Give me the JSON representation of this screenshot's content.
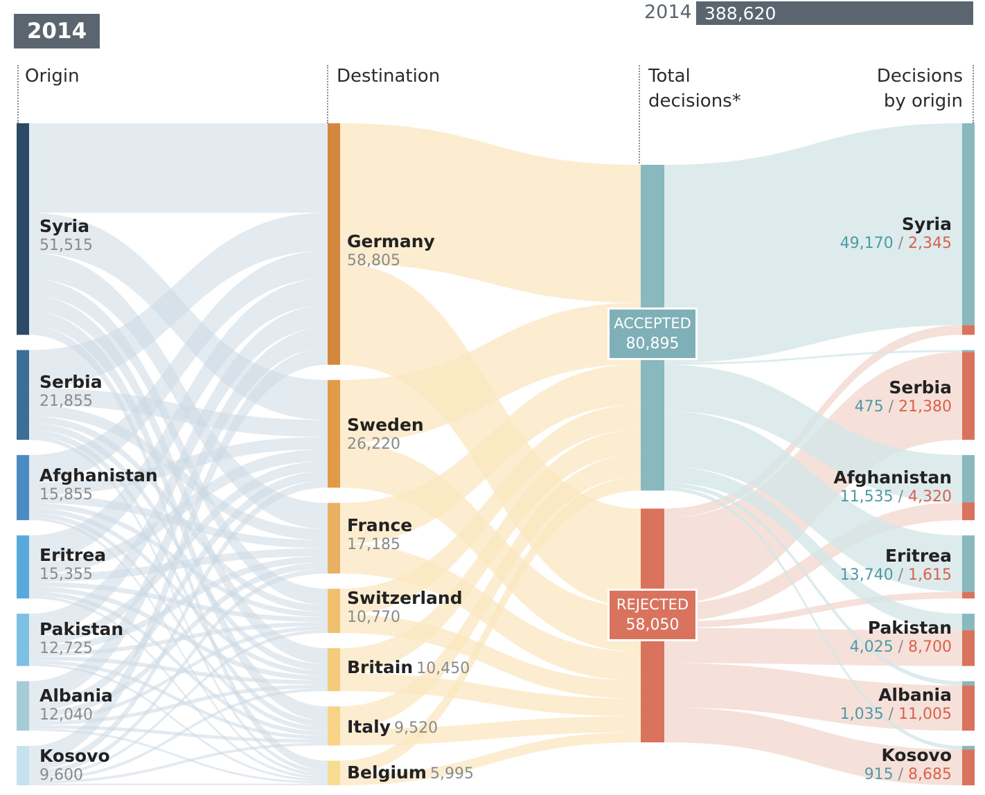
{
  "header": {
    "year": "2014",
    "total_year": "2014",
    "total_value": "388,620"
  },
  "columns": {
    "origin": "Origin",
    "destination": "Destination",
    "total_line1": "Total",
    "total_line2": "decisions*",
    "by_origin_line1": "Decisions",
    "by_origin_line2": "by origin"
  },
  "totals": {
    "accepted_label": "ACCEPTED",
    "accepted_value": "80,895",
    "rejected_label": "REJECTED",
    "rejected_value": "58,050"
  },
  "origins": [
    {
      "name": "Syria",
      "value": "51,515"
    },
    {
      "name": "Serbia",
      "value": "21,855"
    },
    {
      "name": "Afghanistan",
      "value": "15,855"
    },
    {
      "name": "Eritrea",
      "value": "15,355"
    },
    {
      "name": "Pakistan",
      "value": "12,725"
    },
    {
      "name": "Albania",
      "value": "12,040"
    },
    {
      "name": "Kosovo",
      "value": "9,600"
    }
  ],
  "destinations": [
    {
      "name": "Germany",
      "value": "58,805"
    },
    {
      "name": "Sweden",
      "value": "26,220"
    },
    {
      "name": "France",
      "value": "17,185"
    },
    {
      "name": "Switzerland",
      "value": "10,770"
    },
    {
      "name": "Britain",
      "value": "10,450"
    },
    {
      "name": "Italy",
      "value": "9,520"
    },
    {
      "name": "Belgium",
      "value": "5,995"
    }
  ],
  "decisions": [
    {
      "name": "Syria",
      "accepted": "49,170",
      "rejected": "2,345"
    },
    {
      "name": "Serbia",
      "accepted": "475",
      "rejected": "21,380"
    },
    {
      "name": "Afghanistan",
      "accepted": "11,535",
      "rejected": "4,320"
    },
    {
      "name": "Eritrea",
      "accepted": "13,740",
      "rejected": "1,615"
    },
    {
      "name": "Pakistan",
      "accepted": "4,025",
      "rejected": "8,700"
    },
    {
      "name": "Albania",
      "accepted": "1,035",
      "rejected": "11,005"
    },
    {
      "name": "Kosovo",
      "accepted": "915",
      "rejected": "8,685"
    }
  ],
  "colors": {
    "origin_nodes": [
      "#2c4a66",
      "#3d6e97",
      "#4a8cc2",
      "#5aa9dc",
      "#7cc0e3",
      "#a4cbd6",
      "#c5e3ef"
    ],
    "origin_flow": "#ccd8e4",
    "destination_nodes": [
      "#d4873e",
      "#e09a48",
      "#eab062",
      "#f0c06e",
      "#f4cb7c",
      "#f6d386",
      "#f8dc92"
    ],
    "destination_flow": "#fbe7c0",
    "accepted": "#8ab8bf",
    "accepted_flow": "#d5e6e8",
    "rejected": "#d9735e",
    "rejected_flow": "#f5dcd3"
  },
  "chart_data": {
    "type": "sankey",
    "origins": [
      {
        "name": "Syria",
        "total": 51515,
        "accepted": 49170,
        "rejected": 2345
      },
      {
        "name": "Serbia",
        "total": 21855,
        "accepted": 475,
        "rejected": 21380
      },
      {
        "name": "Afghanistan",
        "total": 15855,
        "accepted": 11535,
        "rejected": 4320
      },
      {
        "name": "Eritrea",
        "total": 15355,
        "accepted": 13740,
        "rejected": 1615
      },
      {
        "name": "Pakistan",
        "total": 12725,
        "accepted": 4025,
        "rejected": 8700
      },
      {
        "name": "Albania",
        "total": 12040,
        "accepted": 1035,
        "rejected": 11005
      },
      {
        "name": "Kosovo",
        "total": 9600,
        "accepted": 915,
        "rejected": 8685
      }
    ],
    "destinations": [
      {
        "name": "Germany",
        "total": 58805
      },
      {
        "name": "Sweden",
        "total": 26220
      },
      {
        "name": "France",
        "total": 17185
      },
      {
        "name": "Switzerland",
        "total": 10770
      },
      {
        "name": "Britain",
        "total": 10450
      },
      {
        "name": "Italy",
        "total": 9520
      },
      {
        "name": "Belgium",
        "total": 5995
      }
    ],
    "totals": {
      "accepted": 80895,
      "rejected": 58050
    }
  }
}
